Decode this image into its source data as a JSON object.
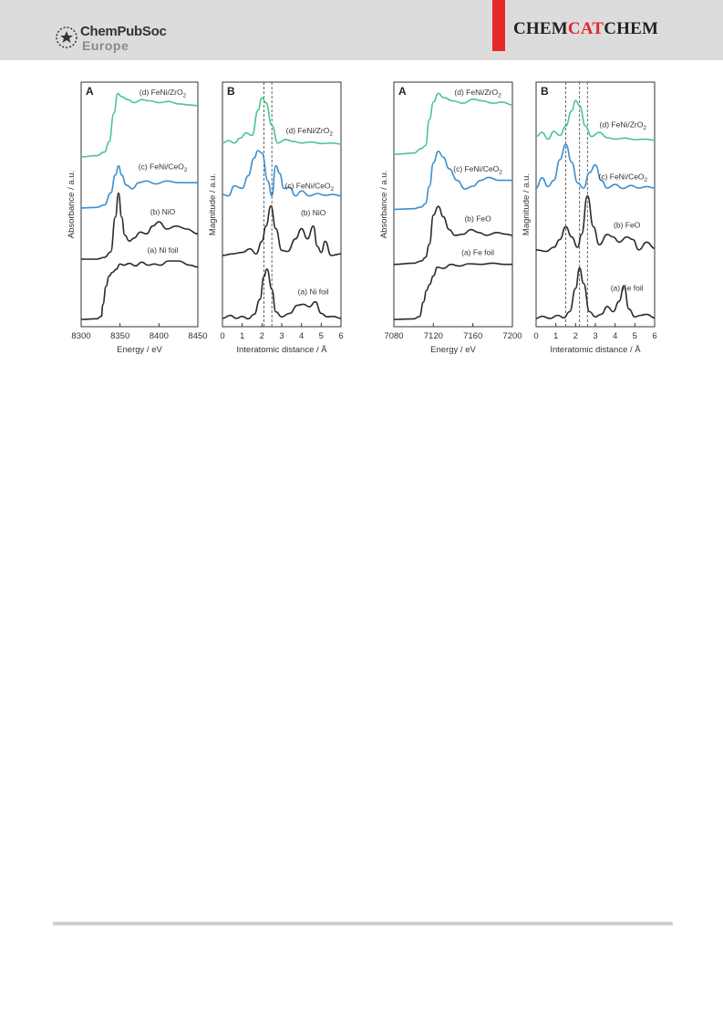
{
  "header": {
    "logo_name": "ChemPubSoc",
    "logo_sub": "Europe",
    "journal_prefix": "CHEM",
    "journal_mid": "CAT",
    "journal_suffix": "CHEM",
    "accent_color": "#e6282b"
  },
  "chart_data": [
    {
      "type": "line",
      "panel": "A",
      "xlabel": "Energy / eV",
      "ylabel": "Absorbance / a.u.",
      "xlim": [
        8300,
        8450
      ],
      "xticks": [
        "8300",
        "8350",
        "8400",
        "8450"
      ],
      "series": [
        {
          "name": "(a) Ni foil",
          "color": "#2b2b2b",
          "offset": 0,
          "x": [
            8300,
            8320,
            8326,
            8328,
            8332,
            8336,
            8340,
            8345,
            8350,
            8355,
            8362,
            8370,
            8378,
            8386,
            8394,
            8402,
            8412,
            8425,
            8440,
            8450
          ],
          "y": [
            0.0,
            0.01,
            0.05,
            0.25,
            0.55,
            0.72,
            0.78,
            0.83,
            0.92,
            0.9,
            0.93,
            0.89,
            0.95,
            0.9,
            0.92,
            0.9,
            0.97,
            0.97,
            0.9,
            0.87
          ]
        },
        {
          "name": "(b) NiO",
          "color": "#2b2b2b",
          "offset": 1.0,
          "x": [
            8300,
            8320,
            8330,
            8338,
            8344,
            8348,
            8352,
            8356,
            8362,
            8368,
            8376,
            8384,
            8392,
            8400,
            8410,
            8422,
            8436,
            8450
          ],
          "y": [
            0.0,
            0.0,
            0.03,
            0.12,
            0.7,
            1.1,
            0.7,
            0.4,
            0.3,
            0.35,
            0.45,
            0.42,
            0.55,
            0.62,
            0.5,
            0.55,
            0.5,
            0.42
          ]
        },
        {
          "name": "(c) FeNi/CeO2",
          "color": "#3d8fce",
          "offset": 1.85,
          "x": [
            8300,
            8320,
            8330,
            8338,
            8344,
            8348,
            8352,
            8358,
            8366,
            8374,
            8384,
            8396,
            8410,
            8425,
            8440,
            8450
          ],
          "y": [
            0.0,
            0.01,
            0.05,
            0.25,
            0.55,
            0.7,
            0.55,
            0.38,
            0.32,
            0.42,
            0.45,
            0.4,
            0.45,
            0.42,
            0.42,
            0.42
          ]
        },
        {
          "name": "(d) FeNi/ZrO2",
          "color": "#4cc48f",
          "offset": 2.7,
          "x": [
            8300,
            8320,
            8330,
            8336,
            8342,
            8347,
            8352,
            8360,
            8368,
            8378,
            8388,
            8400,
            8412,
            8425,
            8440,
            8450
          ],
          "y": [
            0.0,
            0.02,
            0.08,
            0.25,
            0.72,
            1.05,
            1.0,
            0.95,
            0.9,
            0.95,
            0.93,
            0.9,
            0.92,
            0.88,
            0.86,
            0.85
          ]
        }
      ]
    },
    {
      "type": "line",
      "panel": "B",
      "xlabel": "Interatomic distance / Å",
      "ylabel": "Magnitude / a.u.",
      "xlim": [
        0,
        6
      ],
      "xticks": [
        "0",
        "1",
        "2",
        "3",
        "4",
        "5",
        "6"
      ],
      "vlines": [
        2.1,
        2.5
      ],
      "series": [
        {
          "name": "(a) Ni foil",
          "color": "#2b2b2b",
          "offset": 0,
          "x": [
            0,
            0.4,
            0.7,
            1.0,
            1.3,
            1.6,
            1.9,
            2.1,
            2.25,
            2.5,
            2.7,
            3.0,
            3.4,
            3.8,
            4.1,
            4.4,
            4.7,
            5.0,
            5.3,
            5.6,
            6.0
          ],
          "y": [
            0.02,
            0.08,
            0.02,
            0.06,
            0.01,
            0.1,
            0.4,
            0.85,
            1.0,
            0.6,
            0.15,
            0.05,
            0.12,
            0.28,
            0.3,
            0.25,
            0.35,
            0.12,
            0.05,
            0.06,
            0.02
          ]
        },
        {
          "name": "(b) NiO",
          "color": "#2b2b2b",
          "offset": 1.25,
          "x": [
            0,
            0.5,
            1.0,
            1.4,
            1.7,
            2.0,
            2.2,
            2.45,
            2.7,
            3.0,
            3.3,
            3.7,
            4.0,
            4.3,
            4.6,
            4.8,
            5.0,
            5.2,
            5.5,
            6.0
          ],
          "y": [
            0.02,
            0.05,
            0.08,
            0.15,
            0.05,
            0.3,
            0.6,
            1.0,
            0.55,
            0.12,
            0.1,
            0.35,
            0.55,
            0.35,
            0.6,
            0.2,
            0.08,
            0.3,
            0.02,
            0.05
          ]
        },
        {
          "name": "(c) FeNi/CeO2",
          "color": "#3d8fce",
          "offset": 2.4,
          "x": [
            0,
            0.3,
            0.6,
            1.0,
            1.3,
            1.6,
            1.8,
            2.0,
            2.3,
            2.5,
            2.7,
            2.9,
            3.1,
            3.4,
            3.7,
            4.0,
            4.4,
            4.8,
            5.2,
            5.6,
            6.0
          ],
          "y": [
            0.08,
            0.05,
            0.25,
            0.2,
            0.45,
            0.8,
            0.95,
            0.9,
            0.35,
            0.05,
            0.65,
            0.5,
            0.2,
            0.22,
            0.05,
            0.15,
            0.05,
            0.1,
            0.06,
            0.08,
            0.05
          ]
        },
        {
          "name": "(d) FeNi/ZrO2",
          "color": "#4cc48f",
          "offset": 3.45,
          "x": [
            0,
            0.3,
            0.6,
            0.9,
            1.2,
            1.5,
            1.8,
            2.0,
            2.2,
            2.5,
            2.8,
            3.2,
            3.6,
            4.0,
            4.5,
            5.0,
            5.5,
            6.0
          ],
          "y": [
            0.05,
            0.1,
            0.05,
            0.15,
            0.25,
            0.2,
            0.7,
            0.95,
            0.85,
            0.4,
            0.05,
            0.12,
            0.08,
            0.05,
            0.07,
            0.04,
            0.05,
            0.03
          ]
        }
      ]
    },
    {
      "type": "line",
      "panel": "A",
      "xlabel": "Energy / eV",
      "ylabel": "Absorbance / a.u.",
      "xlim": [
        7080,
        7200
      ],
      "xticks": [
        "7080",
        "7120",
        "7160",
        "7200"
      ],
      "series": [
        {
          "name": "(a) Fe foil",
          "color": "#2b2b2b",
          "offset": 0,
          "x": [
            7080,
            7100,
            7106,
            7110,
            7113,
            7116,
            7120,
            7124,
            7130,
            7138,
            7146,
            7156,
            7168,
            7180,
            7192,
            7200
          ],
          "y": [
            0.0,
            0.01,
            0.05,
            0.3,
            0.5,
            0.6,
            0.75,
            0.9,
            0.88,
            0.95,
            0.92,
            0.96,
            0.95,
            0.97,
            0.95,
            0.95
          ]
        },
        {
          "name": "(b) FeO",
          "color": "#2b2b2b",
          "offset": 0.95,
          "x": [
            7080,
            7100,
            7108,
            7112,
            7116,
            7120,
            7125,
            7130,
            7136,
            7142,
            7150,
            7158,
            7166,
            7174,
            7184,
            7194,
            7200
          ],
          "y": [
            0.0,
            0.02,
            0.06,
            0.12,
            0.35,
            0.85,
            1.0,
            0.82,
            0.6,
            0.5,
            0.52,
            0.6,
            0.55,
            0.5,
            0.55,
            0.52,
            0.5
          ]
        },
        {
          "name": "(c) FeNi/CeO2",
          "color": "#3d8fce",
          "offset": 1.9,
          "x": [
            7080,
            7100,
            7108,
            7112,
            7116,
            7120,
            7125,
            7130,
            7136,
            7144,
            7152,
            7160,
            7168,
            7176,
            7186,
            7196,
            7200
          ],
          "y": [
            0.0,
            0.01,
            0.04,
            0.1,
            0.4,
            0.8,
            1.0,
            0.9,
            0.7,
            0.5,
            0.35,
            0.4,
            0.5,
            0.55,
            0.5,
            0.5,
            0.5
          ]
        },
        {
          "name": "(d) FeNi/ZrO2",
          "color": "#4cc48f",
          "offset": 2.85,
          "x": [
            7080,
            7100,
            7108,
            7112,
            7116,
            7120,
            7125,
            7130,
            7140,
            7150,
            7160,
            7170,
            7180,
            7190,
            7200
          ],
          "y": [
            0.0,
            0.02,
            0.1,
            0.15,
            0.6,
            0.9,
            1.05,
            0.98,
            0.92,
            0.88,
            0.95,
            0.92,
            0.88,
            0.9,
            0.85
          ]
        }
      ]
    },
    {
      "type": "line",
      "panel": "B",
      "xlabel": "Interatomic distance / Å",
      "ylabel": "Magnitude / a.u.",
      "xlim": [
        0,
        6
      ],
      "xticks": [
        "0",
        "1",
        "2",
        "3",
        "4",
        "5",
        "6"
      ],
      "vlines": [
        1.5,
        2.2,
        2.6
      ],
      "series": [
        {
          "name": "(a) Fe foil",
          "color": "#2b2b2b",
          "offset": 0,
          "x": [
            0,
            0.3,
            0.7,
            1.1,
            1.4,
            1.7,
            2.0,
            2.2,
            2.4,
            2.7,
            3.0,
            3.3,
            3.6,
            3.9,
            4.2,
            4.45,
            4.7,
            5.0,
            5.3,
            5.6,
            6.0
          ],
          "y": [
            0.02,
            0.06,
            0.02,
            0.08,
            0.03,
            0.15,
            0.6,
            1.0,
            0.7,
            0.15,
            0.05,
            0.1,
            0.25,
            0.15,
            0.35,
            0.65,
            0.2,
            0.05,
            0.08,
            0.1,
            0.03
          ]
        },
        {
          "name": "(b) FeO",
          "color": "#2b2b2b",
          "offset": 1.3,
          "x": [
            0,
            0.5,
            0.9,
            1.2,
            1.5,
            1.8,
            2.1,
            2.3,
            2.6,
            2.9,
            3.2,
            3.6,
            3.9,
            4.2,
            4.6,
            4.9,
            5.2,
            5.6,
            6.0
          ],
          "y": [
            0.05,
            0.02,
            0.1,
            0.25,
            0.5,
            0.3,
            0.1,
            0.35,
            1.1,
            0.5,
            0.15,
            0.35,
            0.3,
            0.2,
            0.3,
            0.25,
            0.05,
            0.2,
            0.08
          ]
        },
        {
          "name": "(c) FeNi/CeO2",
          "color": "#3d8fce",
          "offset": 2.5,
          "x": [
            0,
            0.3,
            0.6,
            0.9,
            1.2,
            1.5,
            1.8,
            2.1,
            2.4,
            2.7,
            3.0,
            3.3,
            3.6,
            4.0,
            4.4,
            4.8,
            5.2,
            5.6,
            6.0
          ],
          "y": [
            0.05,
            0.25,
            0.08,
            0.2,
            0.6,
            0.9,
            0.55,
            0.15,
            0.05,
            0.35,
            0.5,
            0.2,
            0.05,
            0.12,
            0.04,
            0.1,
            0.05,
            0.08,
            0.05
          ]
        },
        {
          "name": "(d) FeNi/ZrO2",
          "color": "#4cc48f",
          "offset": 3.45,
          "x": [
            0,
            0.3,
            0.6,
            0.9,
            1.2,
            1.5,
            1.8,
            2.0,
            2.2,
            2.5,
            2.8,
            3.2,
            3.6,
            4.0,
            4.5,
            5.0,
            5.5,
            6.0
          ],
          "y": [
            0.1,
            0.18,
            0.05,
            0.2,
            0.12,
            0.3,
            0.6,
            0.8,
            0.7,
            0.3,
            0.1,
            0.18,
            0.08,
            0.05,
            0.07,
            0.04,
            0.05,
            0.03
          ]
        }
      ]
    }
  ]
}
